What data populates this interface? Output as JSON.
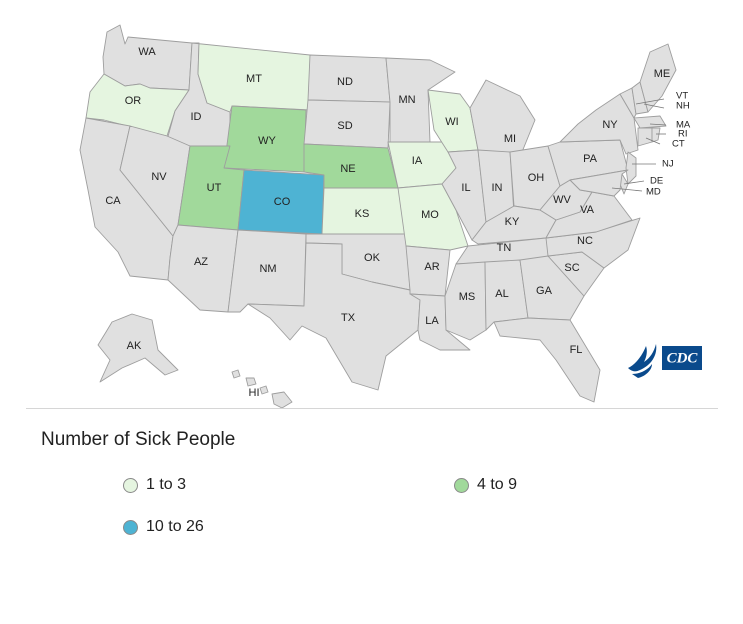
{
  "legend": {
    "title": "Number of Sick People",
    "items": [
      {
        "label": "1 to 3",
        "color": "#e5f5e0"
      },
      {
        "label": "4 to 9",
        "color": "#a1d99b"
      },
      {
        "label": "10 to 26",
        "color": "#4eb3d3"
      }
    ]
  },
  "colors": {
    "default": "#e0e0e0",
    "border": "#9e9e9e"
  },
  "logo": {
    "text": "CDC",
    "color": "#0a4a8c"
  },
  "states": [
    {
      "abbr": "WA",
      "group": ""
    },
    {
      "abbr": "OR",
      "group": "1 to 3"
    },
    {
      "abbr": "CA",
      "group": ""
    },
    {
      "abbr": "ID",
      "group": ""
    },
    {
      "abbr": "NV",
      "group": ""
    },
    {
      "abbr": "MT",
      "group": "1 to 3"
    },
    {
      "abbr": "WY",
      "group": "4 to 9"
    },
    {
      "abbr": "UT",
      "group": "4 to 9"
    },
    {
      "abbr": "AZ",
      "group": ""
    },
    {
      "abbr": "CO",
      "group": "10 to 26"
    },
    {
      "abbr": "NM",
      "group": ""
    },
    {
      "abbr": "ND",
      "group": ""
    },
    {
      "abbr": "SD",
      "group": ""
    },
    {
      "abbr": "NE",
      "group": "4 to 9"
    },
    {
      "abbr": "KS",
      "group": "1 to 3"
    },
    {
      "abbr": "OK",
      "group": ""
    },
    {
      "abbr": "TX",
      "group": ""
    },
    {
      "abbr": "MN",
      "group": ""
    },
    {
      "abbr": "IA",
      "group": "1 to 3"
    },
    {
      "abbr": "MO",
      "group": "1 to 3"
    },
    {
      "abbr": "AR",
      "group": ""
    },
    {
      "abbr": "LA",
      "group": ""
    },
    {
      "abbr": "WI",
      "group": "1 to 3"
    },
    {
      "abbr": "IL",
      "group": ""
    },
    {
      "abbr": "MI",
      "group": ""
    },
    {
      "abbr": "IN",
      "group": ""
    },
    {
      "abbr": "OH",
      "group": ""
    },
    {
      "abbr": "KY",
      "group": ""
    },
    {
      "abbr": "TN",
      "group": ""
    },
    {
      "abbr": "MS",
      "group": ""
    },
    {
      "abbr": "AL",
      "group": ""
    },
    {
      "abbr": "GA",
      "group": ""
    },
    {
      "abbr": "FL",
      "group": ""
    },
    {
      "abbr": "SC",
      "group": ""
    },
    {
      "abbr": "NC",
      "group": ""
    },
    {
      "abbr": "VA",
      "group": ""
    },
    {
      "abbr": "WV",
      "group": ""
    },
    {
      "abbr": "PA",
      "group": ""
    },
    {
      "abbr": "NY",
      "group": ""
    },
    {
      "abbr": "VT",
      "group": ""
    },
    {
      "abbr": "NH",
      "group": ""
    },
    {
      "abbr": "ME",
      "group": ""
    },
    {
      "abbr": "MA",
      "group": ""
    },
    {
      "abbr": "RI",
      "group": ""
    },
    {
      "abbr": "CT",
      "group": ""
    },
    {
      "abbr": "NJ",
      "group": ""
    },
    {
      "abbr": "DE",
      "group": ""
    },
    {
      "abbr": "MD",
      "group": ""
    },
    {
      "abbr": "AK",
      "group": ""
    },
    {
      "abbr": "HI",
      "group": ""
    }
  ]
}
